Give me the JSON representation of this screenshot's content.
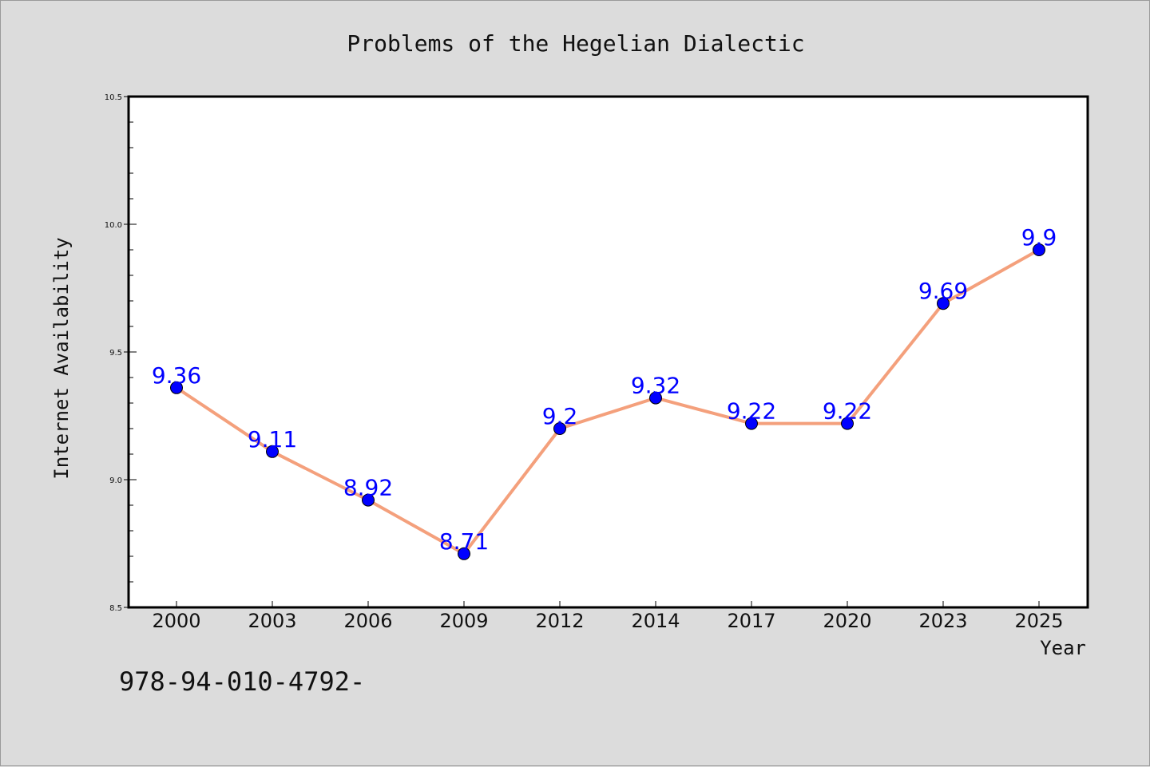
{
  "chart_data": {
    "type": "line",
    "title": "Problems of the Hegelian Dialectic",
    "xlabel": "Year",
    "ylabel": "Internet Availability",
    "categories": [
      "2000",
      "2003",
      "2006",
      "2009",
      "2012",
      "2014",
      "2017",
      "2020",
      "2023",
      "2025"
    ],
    "series": [
      {
        "values": [
          9.36,
          9.11,
          8.92,
          8.71,
          9.2,
          9.32,
          9.22,
          9.22,
          9.69,
          9.9
        ],
        "value_labels": [
          "9.36",
          "9.11",
          "8.92",
          "8.71",
          "9.2",
          "9.32",
          "9.22",
          "9.22",
          "9.69",
          "9.9"
        ],
        "line_color": "#f4a07c",
        "marker_color": "#0000ff"
      }
    ],
    "ylim": [
      8.5,
      10.5
    ],
    "yticks": [
      8.5,
      9.0,
      9.5,
      10.0,
      10.5
    ],
    "ytick_labels": [
      "8.5",
      "9.0",
      "9.5",
      "10.0",
      "10.5"
    ],
    "grid": false,
    "legend": "none",
    "label_color": "#0000ff"
  },
  "footnote": "978-94-010-4792-"
}
